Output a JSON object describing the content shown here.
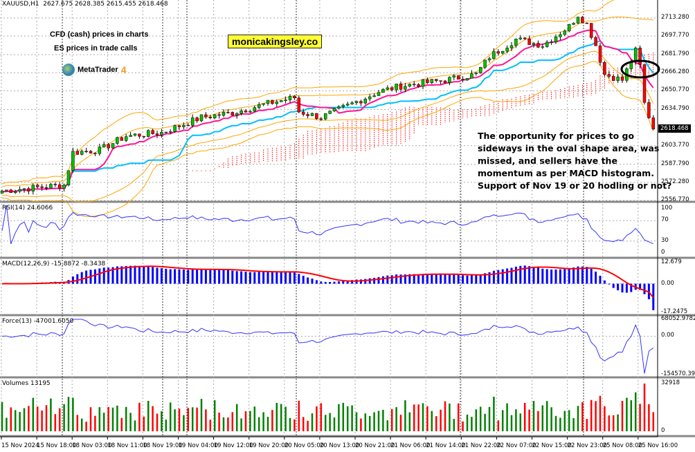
{
  "header": {
    "symbol": "XAUUSD,H1",
    "ohlc": "2627.675 2628.385 2615.455 2618.468"
  },
  "notes": [
    "CFD (cash) prices in charts",
    "ES prices in trade calls"
  ],
  "logo": {
    "name": "MetaTrader",
    "version": "4"
  },
  "watermark": "monicakingsley.co",
  "annotation": [
    "The opportunity for prices to go",
    "sideways in the oval shape area, was",
    "missed, and sellers have the",
    "momentum as per MACD histogram.",
    "Support of Nov 19 or 20 hodling or not?"
  ],
  "colors": {
    "bull": "#00c000",
    "bear": "#ff0000",
    "tenkan": "#ff1493",
    "kijun": "#00bfff",
    "bands": "#ffa500",
    "cloud": "#ff0000",
    "indicator": "#3333ff",
    "macd_hist": "#0000ff",
    "macd_signal": "#ff0000",
    "vol_up": "#008000",
    "vol_down": "#ff0000"
  },
  "chart_data": {
    "type": "candlestick",
    "symbol": "XAUUSD",
    "timeframe": "H1",
    "price_axis": {
      "ticks": [
        "2713.280",
        "2697.770",
        "2681.790",
        "2666.280",
        "2650.770",
        "2634.790",
        "2618.468",
        "2603.770",
        "2587.790",
        "2572.280",
        "2556.770"
      ],
      "range": [
        2556.77,
        2713.28
      ]
    },
    "current_price": "2618.468",
    "price_path": [
      [
        0,
        2565
      ],
      [
        8,
        2568
      ],
      [
        14,
        2570
      ],
      [
        16,
        2598
      ],
      [
        22,
        2600
      ],
      [
        28,
        2612
      ],
      [
        36,
        2615
      ],
      [
        45,
        2628
      ],
      [
        52,
        2632
      ],
      [
        60,
        2640
      ],
      [
        66,
        2645
      ],
      [
        67,
        2633
      ],
      [
        72,
        2628
      ],
      [
        78,
        2638
      ],
      [
        85,
        2650
      ],
      [
        90,
        2655
      ],
      [
        100,
        2660
      ],
      [
        107,
        2665
      ],
      [
        110,
        2680
      ],
      [
        116,
        2695
      ],
      [
        122,
        2690
      ],
      [
        128,
        2706
      ],
      [
        130,
        2716
      ],
      [
        132,
        2708
      ],
      [
        134,
        2690
      ],
      [
        136,
        2665
      ],
      [
        140,
        2660
      ],
      [
        143,
        2685
      ],
      [
        144,
        2672
      ],
      [
        145,
        2640
      ],
      [
        147,
        2618
      ]
    ],
    "time_labels": [
      "15 Nov 2024",
      "15 Nov 18:00",
      "18 Nov 03:00",
      "18 Nov 11:00",
      "18 Nov 19:00",
      "19 Nov 04:00",
      "19 Nov 12:00",
      "19 Nov 20:00",
      "20 Nov 05:00",
      "20 Nov 13:00",
      "20 Nov 21:00",
      "21 Nov 06:00",
      "21 Nov 14:00",
      "21 Nov 22:00",
      "22 Nov 07:00",
      "22 Nov 15:00",
      "22 Nov 23:00",
      "25 Nov 08:00",
      "25 Nov 16:00"
    ],
    "rsi": {
      "label": "RSI(14) 24.6066",
      "ticks": [
        "100",
        "70",
        "30",
        "0"
      ]
    },
    "macd": {
      "label": "MACD(12,26,9) -15.8872 -8.3438",
      "ticks": [
        "12.679",
        "0.00",
        "-17.2475"
      ],
      "range": [
        -17.2475,
        12.679
      ]
    },
    "force": {
      "label": "Force(13) -47001.6050",
      "ticks": [
        "68052.9782",
        "0.00",
        "-154570.39"
      ],
      "range": [
        -154570.39,
        68052.9782
      ]
    },
    "volumes": {
      "label": "Volumes 13195",
      "ticks": [
        "32918",
        "0"
      ],
      "range": [
        0,
        32918
      ]
    }
  }
}
